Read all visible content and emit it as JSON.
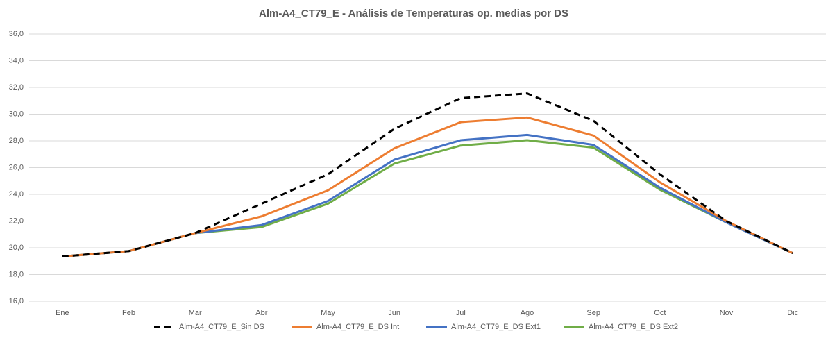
{
  "chart_data": {
    "type": "line",
    "title": "Alm-A4_CT79_E - Análisis de Temperaturas op. medias por DS",
    "categories": [
      "Ene",
      "Feb",
      "Mar",
      "Abr",
      "May",
      "Jun",
      "Jul",
      "Ago",
      "Sep",
      "Oct",
      "Nov",
      "Dic"
    ],
    "series": [
      {
        "name": "Alm-A4_CT79_E_Sin DS",
        "color": "#000000",
        "linestyle": "dashed",
        "values": [
          19.35,
          19.75,
          21.1,
          23.3,
          25.5,
          28.9,
          31.2,
          31.55,
          29.5,
          25.5,
          22.0,
          19.6
        ]
      },
      {
        "name": "Alm-A4_CT79_E_DS Int",
        "color": "#ed7d31",
        "linestyle": "solid",
        "values": [
          19.35,
          19.75,
          21.1,
          22.35,
          24.3,
          27.45,
          29.4,
          29.75,
          28.4,
          24.9,
          22.0,
          19.6
        ]
      },
      {
        "name": "Alm-A4_CT79_E_DS Ext1",
        "color": "#4472c4",
        "linestyle": "solid",
        "values": [
          19.35,
          19.75,
          21.1,
          21.7,
          23.5,
          26.6,
          28.05,
          28.45,
          27.7,
          24.5,
          21.9,
          19.6
        ]
      },
      {
        "name": "Alm-A4_CT79_E_DS Ext2",
        "color": "#70ad47",
        "linestyle": "solid",
        "values": [
          19.35,
          19.75,
          21.1,
          21.55,
          23.3,
          26.3,
          27.65,
          28.05,
          27.5,
          24.35,
          21.9,
          19.6
        ]
      }
    ],
    "ylim": [
      16,
      36
    ],
    "yticks": [
      {
        "value": 16,
        "label": "16,0"
      },
      {
        "value": 18,
        "label": "18,0"
      },
      {
        "value": 20,
        "label": "20,0"
      },
      {
        "value": 22,
        "label": "22,0"
      },
      {
        "value": 24,
        "label": "24,0"
      },
      {
        "value": 26,
        "label": "26,0"
      },
      {
        "value": 28,
        "label": "28,0"
      },
      {
        "value": 30,
        "label": "30,0"
      },
      {
        "value": 32,
        "label": "32,0"
      },
      {
        "value": 34,
        "label": "34,0"
      },
      {
        "value": 36,
        "label": "36,0"
      }
    ],
    "grid": true,
    "legend": "bottom"
  }
}
